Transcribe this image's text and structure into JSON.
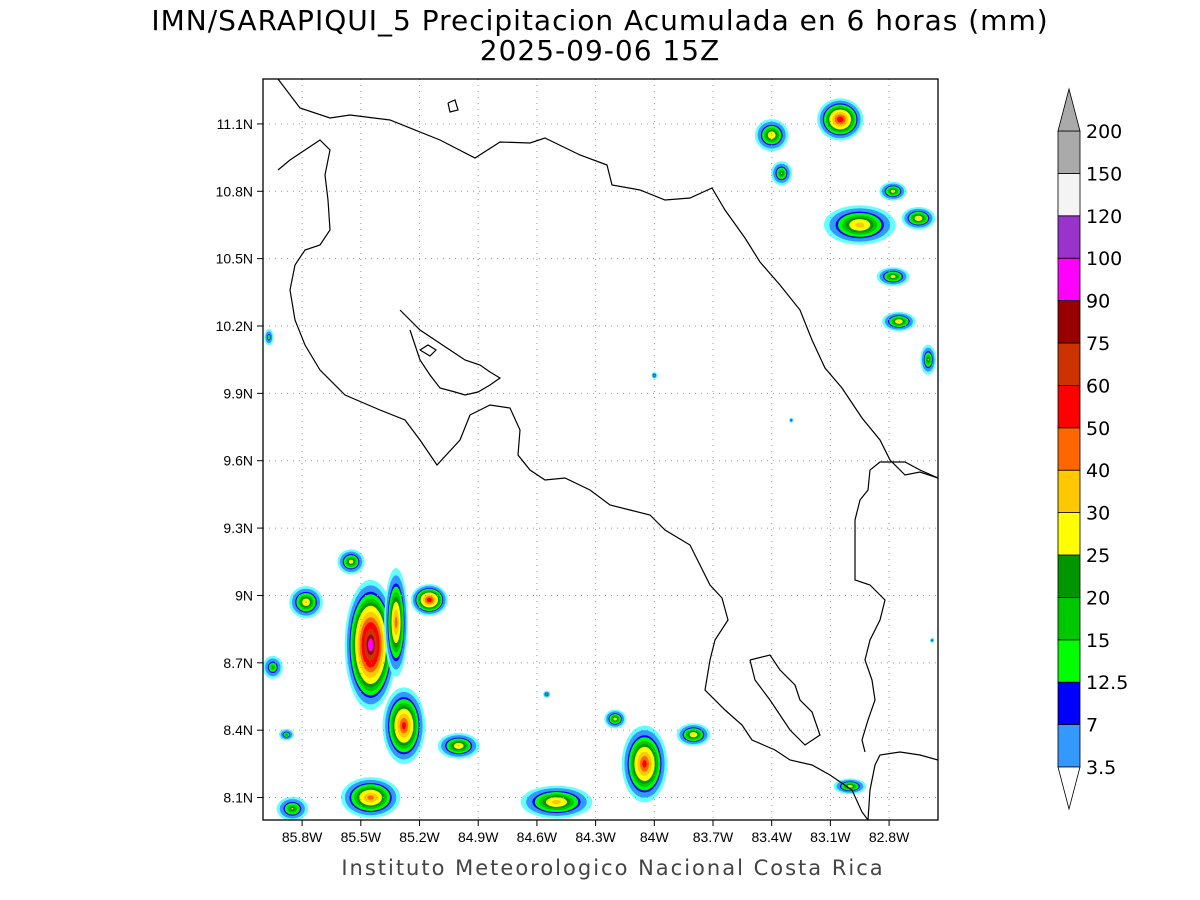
{
  "title": {
    "line1": "IMN/SARAPIQUI_5 Precipitacion Acumulada en 6 horas (mm)",
    "line2": "2025-09-06 15Z"
  },
  "footer": "Instituto Meteorologico Nacional Costa Rica",
  "axes": {
    "lon_range": [
      -86.0,
      -82.55
    ],
    "lat_range": [
      8.0,
      11.3
    ],
    "x_ticks": [
      {
        "value": -85.8,
        "label": "85.8W"
      },
      {
        "value": -85.5,
        "label": "85.5W"
      },
      {
        "value": -85.2,
        "label": "85.2W"
      },
      {
        "value": -84.9,
        "label": "84.9W"
      },
      {
        "value": -84.6,
        "label": "84.6W"
      },
      {
        "value": -84.3,
        "label": "84.3W"
      },
      {
        "value": -84.0,
        "label": "84W"
      },
      {
        "value": -83.7,
        "label": "83.7W"
      },
      {
        "value": -83.4,
        "label": "83.4W"
      },
      {
        "value": -83.1,
        "label": "83.1W"
      },
      {
        "value": -82.8,
        "label": "82.8W"
      }
    ],
    "y_ticks": [
      {
        "value": 8.1,
        "label": "8.1N"
      },
      {
        "value": 8.4,
        "label": "8.4N"
      },
      {
        "value": 8.7,
        "label": "8.7N"
      },
      {
        "value": 9.0,
        "label": "9N"
      },
      {
        "value": 9.3,
        "label": "9.3N"
      },
      {
        "value": 9.6,
        "label": "9.6N"
      },
      {
        "value": 9.9,
        "label": "9.9N"
      },
      {
        "value": 10.2,
        "label": "10.2N"
      },
      {
        "value": 10.5,
        "label": "10.5N"
      },
      {
        "value": 10.8,
        "label": "10.8N"
      },
      {
        "value": 11.1,
        "label": "11.1N"
      }
    ],
    "grid": "dotted"
  },
  "colorbar": {
    "levels": [
      {
        "label": "3.5",
        "color": "#66ffff"
      },
      {
        "label": "7",
        "color": "#3399ff"
      },
      {
        "label": "12.5",
        "color": "#0000ff"
      },
      {
        "label": "15",
        "color": "#00ff00"
      },
      {
        "label": "20",
        "color": "#00c800"
      },
      {
        "label": "25",
        "color": "#009600"
      },
      {
        "label": "30",
        "color": "#ffff00"
      },
      {
        "label": "40",
        "color": "#ffc800"
      },
      {
        "label": "50",
        "color": "#ff6600"
      },
      {
        "label": "60",
        "color": "#ff0000"
      },
      {
        "label": "75",
        "color": "#cc3300"
      },
      {
        "label": "90",
        "color": "#990000"
      },
      {
        "label": "100",
        "color": "#ff00ff"
      },
      {
        "label": "120",
        "color": "#9933cc"
      },
      {
        "label": "150",
        "color": "#f4f4f4"
      },
      {
        "label": "200",
        "color": "#aaaaaa"
      }
    ],
    "lower_arrow_color": "#ffffff",
    "upper_arrow_color": "#aaaaaa"
  },
  "precip_cells": [
    {
      "lon": -85.45,
      "lat": 8.78,
      "rlon": 0.16,
      "rlat": 0.35,
      "max": 110
    },
    {
      "lon": -85.32,
      "lat": 8.88,
      "rlon": 0.08,
      "rlat": 0.32,
      "max": 55
    },
    {
      "lon": -85.28,
      "lat": 8.42,
      "rlon": 0.14,
      "rlat": 0.22,
      "max": 65
    },
    {
      "lon": -85.15,
      "lat": 8.98,
      "rlon": 0.12,
      "rlat": 0.09,
      "max": 70
    },
    {
      "lon": -85.55,
      "lat": 9.15,
      "rlon": 0.1,
      "rlat": 0.08,
      "max": 35
    },
    {
      "lon": -85.78,
      "lat": 8.97,
      "rlon": 0.12,
      "rlat": 0.1,
      "max": 40
    },
    {
      "lon": -85.45,
      "lat": 8.1,
      "rlon": 0.2,
      "rlat": 0.12,
      "max": 55
    },
    {
      "lon": -85.85,
      "lat": 8.05,
      "rlon": 0.12,
      "rlat": 0.08,
      "max": 30
    },
    {
      "lon": -85.0,
      "lat": 8.33,
      "rlon": 0.15,
      "rlat": 0.08,
      "max": 40
    },
    {
      "lon": -84.5,
      "lat": 8.08,
      "rlon": 0.25,
      "rlat": 0.1,
      "max": 45
    },
    {
      "lon": -84.05,
      "lat": 8.25,
      "rlon": 0.15,
      "rlat": 0.22,
      "max": 65
    },
    {
      "lon": -83.8,
      "lat": 8.38,
      "rlon": 0.12,
      "rlat": 0.07,
      "max": 40
    },
    {
      "lon": -84.2,
      "lat": 8.45,
      "rlon": 0.08,
      "rlat": 0.06,
      "max": 35
    },
    {
      "lon": -83.0,
      "lat": 8.15,
      "rlon": 0.12,
      "rlat": 0.05,
      "max": 35
    },
    {
      "lon": -83.05,
      "lat": 11.12,
      "rlon": 0.15,
      "rlat": 0.12,
      "max": 70
    },
    {
      "lon": -83.4,
      "lat": 11.05,
      "rlon": 0.12,
      "rlat": 0.1,
      "max": 40
    },
    {
      "lon": -83.35,
      "lat": 10.88,
      "rlon": 0.08,
      "rlat": 0.08,
      "max": 30
    },
    {
      "lon": -82.95,
      "lat": 10.65,
      "rlon": 0.25,
      "rlat": 0.12,
      "max": 45
    },
    {
      "lon": -82.65,
      "lat": 10.68,
      "rlon": 0.12,
      "rlat": 0.07,
      "max": 40
    },
    {
      "lon": -82.78,
      "lat": 10.8,
      "rlon": 0.1,
      "rlat": 0.06,
      "max": 35
    },
    {
      "lon": -82.75,
      "lat": 10.22,
      "rlon": 0.12,
      "rlat": 0.06,
      "max": 40
    },
    {
      "lon": -82.78,
      "lat": 10.42,
      "rlon": 0.12,
      "rlat": 0.06,
      "max": 35
    },
    {
      "lon": -82.6,
      "lat": 10.05,
      "rlon": 0.06,
      "rlat": 0.1,
      "max": 30
    },
    {
      "lon": -85.95,
      "lat": 8.68,
      "rlon": 0.08,
      "rlat": 0.08,
      "max": 25
    },
    {
      "lon": -85.88,
      "lat": 8.38,
      "rlon": 0.06,
      "rlat": 0.04,
      "max": 25
    },
    {
      "lon": -85.97,
      "lat": 10.15,
      "rlon": 0.04,
      "rlat": 0.06,
      "max": 20
    },
    {
      "lon": -84.0,
      "lat": 9.98,
      "rlon": 0.025,
      "rlat": 0.025,
      "max": 20
    },
    {
      "lon": -83.3,
      "lat": 9.78,
      "rlon": 0.02,
      "rlat": 0.02,
      "max": 16
    },
    {
      "lon": -82.58,
      "lat": 8.8,
      "rlon": 0.02,
      "rlat": 0.02,
      "max": 16
    },
    {
      "lon": -84.55,
      "lat": 8.56,
      "rlon": 0.03,
      "rlat": 0.025,
      "max": 22
    }
  ]
}
